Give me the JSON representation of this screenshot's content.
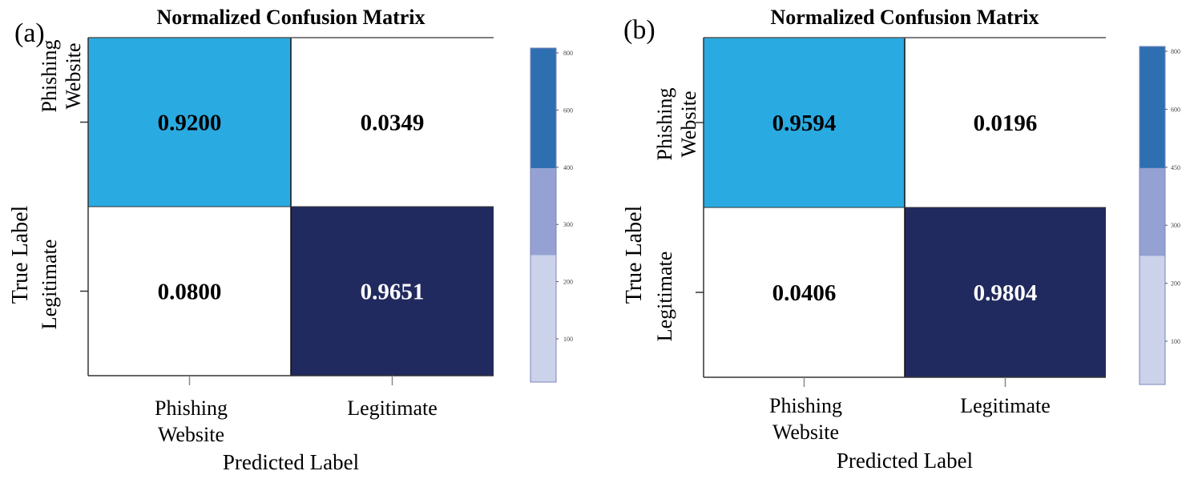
{
  "chart_data": [
    {
      "type": "heatmap",
      "panel_label": "(a)",
      "title": "Normalized Confusion Matrix",
      "xlabel": "Predicted Label",
      "ylabel": "True Label",
      "x_categories": [
        [
          "Phishing",
          "Website"
        ],
        [
          "Legitimate"
        ]
      ],
      "y_categories": [
        [
          "Phishing",
          "Website"
        ],
        [
          "Legitimate"
        ]
      ],
      "cells": [
        [
          {
            "value": "0.9200",
            "color": "#29abe2",
            "text_color": "#000000"
          },
          {
            "value": "0.0349",
            "color": "#ffffff",
            "text_color": "#000000"
          }
        ],
        [
          {
            "value": "0.0800",
            "color": "#ffffff",
            "text_color": "#000000"
          },
          {
            "value": "0.9651",
            "color": "#212a5e",
            "text_color": "#ffffff"
          }
        ]
      ],
      "colorbar": {
        "segments": [
          "#2e6fb1",
          "#95a1d2",
          "#cbd2ea"
        ],
        "ticks": [
          "800",
          "600",
          "400",
          "300",
          "200",
          "100"
        ]
      }
    },
    {
      "type": "heatmap",
      "panel_label": "(b)",
      "title": "Normalized Confusion Matrix",
      "xlabel": "Predicted Label",
      "ylabel": "True Label",
      "x_categories": [
        [
          "Phishing",
          "Website"
        ],
        [
          "Legitimate"
        ]
      ],
      "y_categories": [
        [
          "Phishing",
          "Website"
        ],
        [
          "Legitimate"
        ]
      ],
      "cells": [
        [
          {
            "value": "0.9594",
            "color": "#29abe2",
            "text_color": "#000000"
          },
          {
            "value": "0.0196",
            "color": "#ffffff",
            "text_color": "#000000"
          }
        ],
        [
          {
            "value": "0.0406",
            "color": "#ffffff",
            "text_color": "#000000"
          },
          {
            "value": "0.9804",
            "color": "#212a5e",
            "text_color": "#ffffff"
          }
        ]
      ],
      "colorbar": {
        "segments": [
          "#2e6fb1",
          "#95a1d2",
          "#cbd2ea"
        ],
        "ticks": [
          "800",
          "600",
          "450",
          "300",
          "200",
          "100"
        ]
      }
    }
  ]
}
